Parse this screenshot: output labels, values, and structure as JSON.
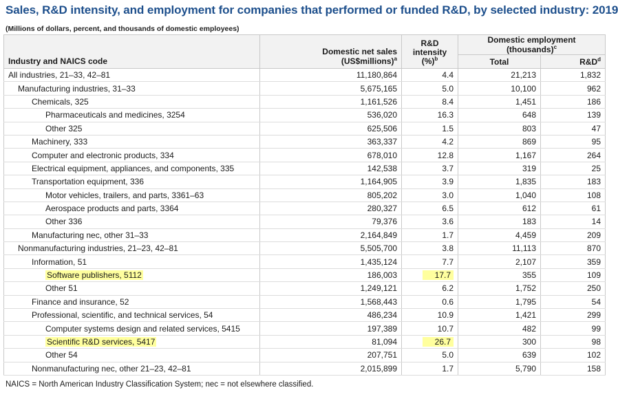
{
  "title": "Sales, R&D intensity, and employment for companies that performed or funded R&D, by selected industry: 2019",
  "subtitle": "(Millions of dollars, percent, and thousands of domestic employees)",
  "headers": {
    "industry": "Industry and NAICS code",
    "sales": "Domestic net sales (US$millions)",
    "sales_sup": "a",
    "intensity_line1": "R&D intensity",
    "intensity_line2": "(%)",
    "intensity_sup": "b",
    "employment": "Domestic employment (thousands)",
    "employment_sup": "c",
    "total": "Total",
    "rd": "R&D",
    "rd_sup": "d"
  },
  "rows": [
    {
      "label": "All industries, 21–33, 42–81",
      "sales": "11,180,864",
      "intensity": "4.4",
      "total": "21,213",
      "rd": "1,832",
      "level": 0
    },
    {
      "label": "Manufacturing industries, 31–33",
      "sales": "5,675,165",
      "intensity": "5.0",
      "total": "10,100",
      "rd": "962",
      "level": 1
    },
    {
      "label": "Chemicals, 325",
      "sales": "1,161,526",
      "intensity": "8.4",
      "total": "1,451",
      "rd": "186",
      "level": 2
    },
    {
      "label": "Pharmaceuticals and medicines, 3254",
      "sales": "536,020",
      "intensity": "16.3",
      "total": "648",
      "rd": "139",
      "level": 3
    },
    {
      "label": "Other 325",
      "sales": "625,506",
      "intensity": "1.5",
      "total": "803",
      "rd": "47",
      "level": 3
    },
    {
      "label": "Machinery, 333",
      "sales": "363,337",
      "intensity": "4.2",
      "total": "869",
      "rd": "95",
      "level": 2
    },
    {
      "label": "Computer and electronic products, 334",
      "sales": "678,010",
      "intensity": "12.8",
      "total": "1,167",
      "rd": "264",
      "level": 2
    },
    {
      "label": "Electrical equipment, appliances, and components, 335",
      "sales": "142,538",
      "intensity": "3.7",
      "total": "319",
      "rd": "25",
      "level": 2
    },
    {
      "label": "Transportation equipment, 336",
      "sales": "1,164,905",
      "intensity": "3.9",
      "total": "1,835",
      "rd": "183",
      "level": 2
    },
    {
      "label": "Motor vehicles, trailers, and parts, 3361–63",
      "sales": "805,202",
      "intensity": "3.0",
      "total": "1,040",
      "rd": "108",
      "level": 3
    },
    {
      "label": "Aerospace products and parts, 3364",
      "sales": "280,327",
      "intensity": "6.5",
      "total": "612",
      "rd": "61",
      "level": 3
    },
    {
      "label": "Other 336",
      "sales": "79,376",
      "intensity": "3.6",
      "total": "183",
      "rd": "14",
      "level": 3
    },
    {
      "label": "Manufacturing nec, other 31–33",
      "sales": "2,164,849",
      "intensity": "1.7",
      "total": "4,459",
      "rd": "209",
      "level": 2
    },
    {
      "label": "Nonmanufacturing industries, 21–23, 42–81",
      "sales": "5,505,700",
      "intensity": "3.8",
      "total": "11,113",
      "rd": "870",
      "level": 1
    },
    {
      "label": "Information, 51",
      "sales": "1,435,124",
      "intensity": "7.7",
      "total": "2,107",
      "rd": "359",
      "level": 2
    },
    {
      "label": "Software publishers, 5112",
      "sales": "186,003",
      "intensity": "17.7",
      "total": "355",
      "rd": "109",
      "level": 3,
      "highlight": true
    },
    {
      "label": "Other 51",
      "sales": "1,249,121",
      "intensity": "6.2",
      "total": "1,752",
      "rd": "250",
      "level": 3
    },
    {
      "label": "Finance and insurance, 52",
      "sales": "1,568,443",
      "intensity": "0.6",
      "total": "1,795",
      "rd": "54",
      "level": 2
    },
    {
      "label": "Professional, scientific, and technical services, 54",
      "sales": "486,234",
      "intensity": "10.9",
      "total": "1,421",
      "rd": "299",
      "level": 2
    },
    {
      "label": "Computer systems design and related services, 5415",
      "sales": "197,389",
      "intensity": "10.7",
      "total": "482",
      "rd": "99",
      "level": 3
    },
    {
      "label": "Scientific R&D services, 5417",
      "sales": "81,094",
      "intensity": "26.7",
      "total": "300",
      "rd": "98",
      "level": 3,
      "highlight": true
    },
    {
      "label": "Other 54",
      "sales": "207,751",
      "intensity": "5.0",
      "total": "639",
      "rd": "102",
      "level": 3
    },
    {
      "label": "Nonmanufacturing nec, other 21–23, 42–81",
      "sales": "2,015,899",
      "intensity": "1.7",
      "total": "5,790",
      "rd": "158",
      "level": 2
    }
  ],
  "footnote": "NAICS = North American Industry Classification System; nec = not elsewhere classified.",
  "colors": {
    "title": "#1d4f8c",
    "highlight": "#ffff9e",
    "header_bg": "#f2f2f2"
  }
}
